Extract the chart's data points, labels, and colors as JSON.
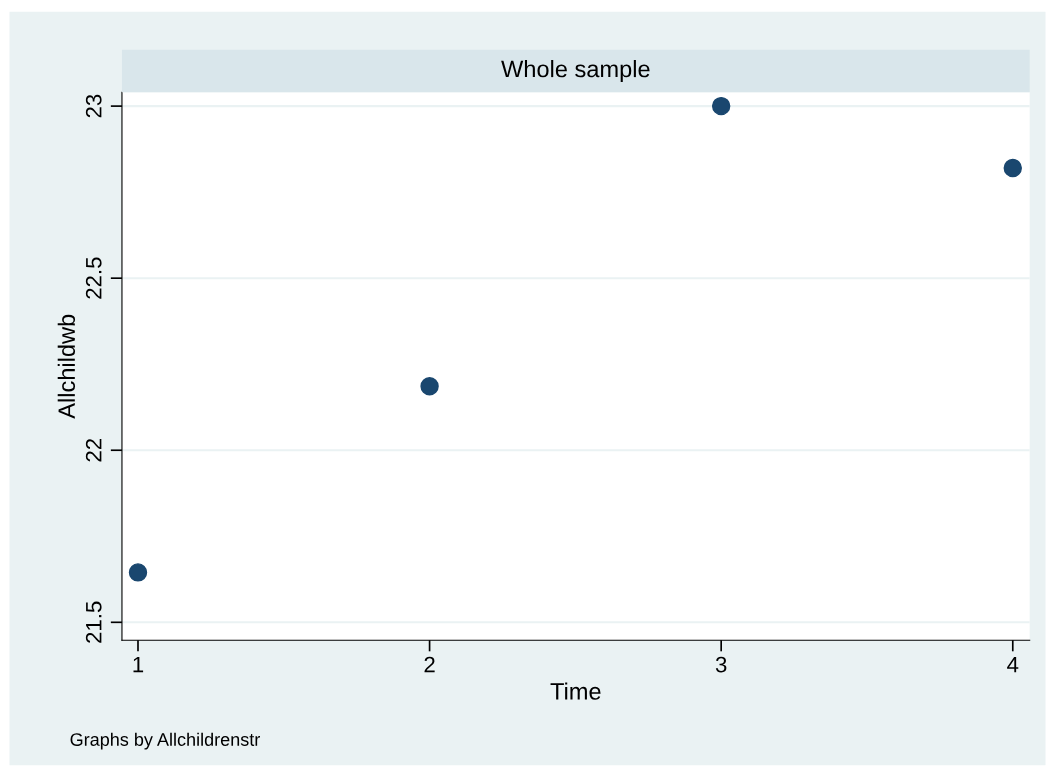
{
  "chart_data": {
    "type": "scatter",
    "title": "Whole sample",
    "xlabel": "Time",
    "ylabel": "Allchildwb",
    "x": [
      1,
      2,
      3,
      4
    ],
    "series": [
      {
        "color": "#1a476f",
        "values": [
          21.645,
          22.186,
          23.0,
          22.82
        ]
      }
    ],
    "xlim": [
      0.945,
      4.058
    ],
    "ylim": [
      21.448,
      23.04
    ],
    "xticks": [
      1,
      2,
      3,
      4
    ],
    "yticks": [
      21.5,
      22,
      22.5,
      23
    ],
    "grid": "y",
    "marker": "circle",
    "legend": false,
    "annotations": [
      "Graphs by Allchildrenstr"
    ]
  }
}
